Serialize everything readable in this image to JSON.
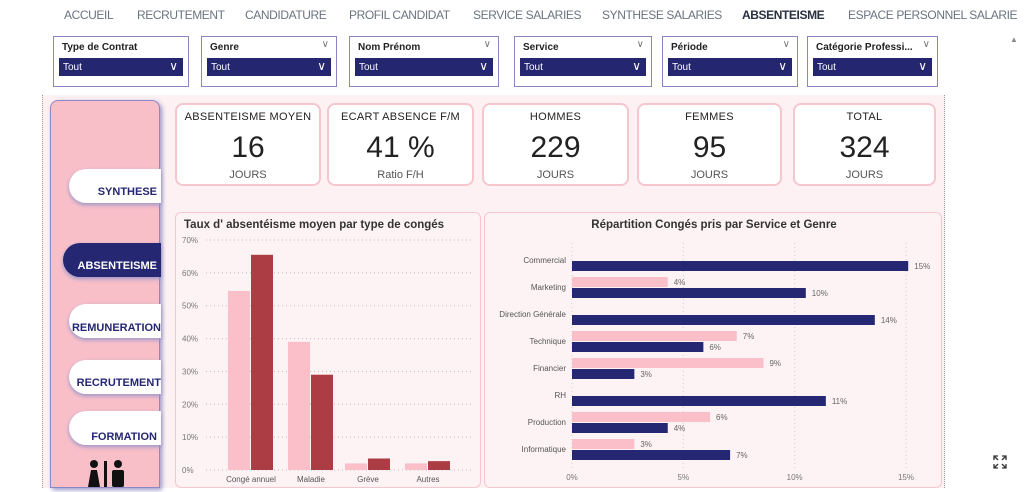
{
  "nav": [
    "ACCUEIL",
    "RECRUTEMENT",
    "CANDIDATURE",
    "PROFIL CANDIDAT",
    "SERVICE SALARIES",
    "SYNTHESE SALARIES",
    "ABSENTEISME",
    "ESPACE PERSONNEL SALARIE"
  ],
  "nav_active": "ABSENTEISME",
  "filters": [
    {
      "label": "Type de Contrat",
      "value": "Tout"
    },
    {
      "label": "Genre",
      "value": "Tout"
    },
    {
      "label": "Nom Prénom",
      "value": "Tout"
    },
    {
      "label": "Service",
      "value": "Tout"
    },
    {
      "label": "Période",
      "value": "Tout"
    },
    {
      "label": "Catégorie Professi...",
      "value": "Tout"
    }
  ],
  "sidebar": [
    "SYNTHESE",
    "ABSENTEISME",
    "REMUNERATION",
    "RECRUTEMENT",
    "FORMATION"
  ],
  "sidebar_active": "ABSENTEISME",
  "kpis": [
    {
      "title": "ABSENTEISME MOYEN",
      "value": "16",
      "unit": "JOURS"
    },
    {
      "title": "ECART ABSENCE F/M",
      "value": "41 %",
      "unit": "Ratio F/H"
    },
    {
      "title": "HOMMES",
      "value": "229",
      "unit": "JOURS"
    },
    {
      "title": "FEMMES",
      "value": "95",
      "unit": "JOURS"
    },
    {
      "title": "TOTAL",
      "value": "324",
      "unit": "JOURS"
    }
  ],
  "colors": {
    "navy": "#262772",
    "pink": "#fbbfca",
    "darkred": "#ad3d44",
    "sidebar": "#f9bfc9"
  },
  "chart_data": [
    {
      "type": "bar",
      "title": "Taux d' absentéisme moyen par type de congés",
      "categories": [
        "Congé annuel",
        "Maladie",
        "Grève",
        "Autres"
      ],
      "series": [
        {
          "color": "#fbbfca",
          "values": [
            54.5,
            39,
            2,
            2
          ]
        },
        {
          "color": "#ad3d44",
          "values": [
            65.5,
            29,
            3.5,
            2.7
          ]
        }
      ],
      "ylim": [
        0,
        70
      ],
      "yticks": [
        "0%",
        "10%",
        "20%",
        "30%",
        "40%",
        "50%",
        "60%",
        "70%"
      ],
      "grid": true
    },
    {
      "type": "bar",
      "orientation": "horizontal",
      "title": "Répartition Congés pris par Service et Genre",
      "categories": [
        "Commercial",
        "Marketing",
        "Direction Générale",
        "Technique",
        "Financier",
        "RH",
        "Production",
        "Informatique"
      ],
      "series": [
        {
          "color": "#fbbfca",
          "values": [
            null,
            4.3,
            null,
            7.4,
            8.6,
            null,
            6.2,
            2.8
          ],
          "labels": [
            "",
            "4%",
            "",
            "7%",
            "9%",
            "",
            "6%",
            "3%"
          ]
        },
        {
          "color": "#262772",
          "values": [
            15.1,
            10.5,
            13.6,
            5.9,
            2.8,
            11.4,
            4.3,
            7.1
          ],
          "labels": [
            "15%",
            "10%",
            "14%",
            "6%",
            "3%",
            "11%",
            "4%",
            "7%"
          ]
        }
      ],
      "xlim": [
        0,
        15
      ],
      "xticks": [
        "0%",
        "5%",
        "10%",
        "15%"
      ],
      "grid": true
    }
  ]
}
